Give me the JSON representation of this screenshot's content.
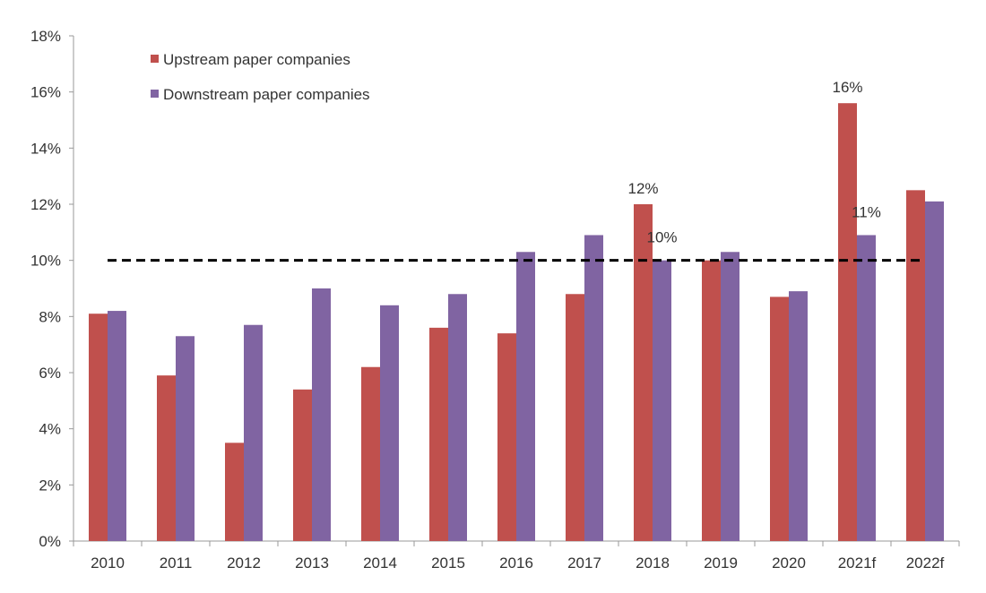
{
  "chart_data": {
    "type": "bar",
    "title": "",
    "xlabel": "",
    "ylabel": "",
    "ylim": [
      0,
      18
    ],
    "yticks": [
      "0%",
      "2%",
      "4%",
      "6%",
      "8%",
      "10%",
      "12%",
      "14%",
      "16%",
      "18%"
    ],
    "grid": false,
    "legend_position": "top-left",
    "categories": [
      "2010",
      "2011",
      "2012",
      "2013",
      "2014",
      "2015",
      "2016",
      "2017",
      "2018",
      "2019",
      "2020",
      "2021f",
      "2022f"
    ],
    "series": [
      {
        "name": "Upstream paper companies",
        "color": "#C0504D",
        "values": [
          8.1,
          5.9,
          3.5,
          5.4,
          6.2,
          7.6,
          7.4,
          8.8,
          12.0,
          10.0,
          8.7,
          15.6,
          12.5
        ]
      },
      {
        "name": "Downstream paper companies",
        "color": "#8064A2",
        "values": [
          8.2,
          7.3,
          7.7,
          9.0,
          8.4,
          8.8,
          10.3,
          10.9,
          10.0,
          10.3,
          8.9,
          10.9,
          12.1
        ]
      }
    ],
    "data_labels": [
      {
        "series": 0,
        "category": "2018",
        "text": "12%"
      },
      {
        "series": 1,
        "category": "2018",
        "text": "10%"
      },
      {
        "series": 0,
        "category": "2021f",
        "text": "16%"
      },
      {
        "series": 1,
        "category": "2021f",
        "text": "11%"
      }
    ],
    "reference_line": {
      "value": 10,
      "style": "dashed",
      "color": "#000000"
    }
  }
}
